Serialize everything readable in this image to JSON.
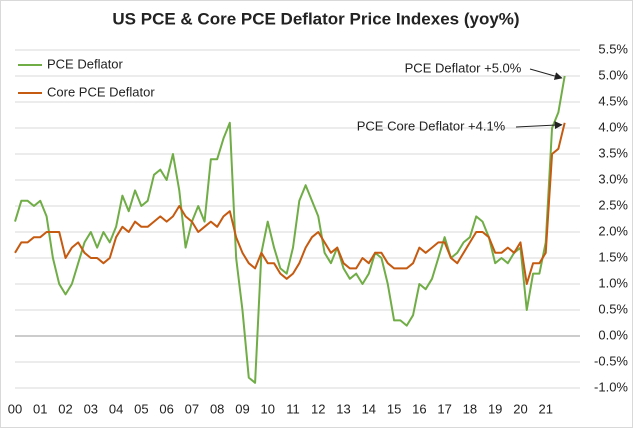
{
  "chart_data": {
    "type": "line",
    "title": "US PCE & Core PCE Deflator Price Indexes (yoy%)",
    "x": [
      0,
      0.25,
      0.5,
      0.75,
      1,
      1.25,
      1.5,
      1.75,
      2,
      2.25,
      2.5,
      2.75,
      3,
      3.25,
      3.5,
      3.75,
      4,
      4.25,
      4.5,
      4.75,
      5,
      5.25,
      5.5,
      5.75,
      6,
      6.25,
      6.5,
      6.75,
      7,
      7.25,
      7.5,
      7.75,
      8,
      8.25,
      8.5,
      8.75,
      9,
      9.25,
      9.5,
      9.75,
      10,
      10.25,
      10.5,
      10.75,
      11,
      11.25,
      11.5,
      11.75,
      12,
      12.25,
      12.5,
      12.75,
      13,
      13.25,
      13.5,
      13.75,
      14,
      14.25,
      14.5,
      14.75,
      15,
      15.25,
      15.5,
      15.75,
      16,
      16.25,
      16.5,
      16.75,
      17,
      17.25,
      17.5,
      17.75,
      18,
      18.25,
      18.5,
      18.75,
      19,
      19.25,
      19.5,
      19.75,
      20,
      20.25,
      20.5,
      20.75,
      21,
      21.25,
      21.5,
      21.75
    ],
    "series": [
      {
        "name": "PCE Deflator",
        "color": "#70ad47",
        "values": [
          2.2,
          2.6,
          2.6,
          2.5,
          2.6,
          2.3,
          1.5,
          1.0,
          0.8,
          1.0,
          1.4,
          1.8,
          2.0,
          1.7,
          2.0,
          1.8,
          2.1,
          2.7,
          2.4,
          2.8,
          2.5,
          2.6,
          3.1,
          3.2,
          3.0,
          3.5,
          2.8,
          1.7,
          2.2,
          2.5,
          2.2,
          3.4,
          3.4,
          3.8,
          4.1,
          1.5,
          0.5,
          -0.8,
          -0.9,
          1.6,
          2.2,
          1.7,
          1.3,
          1.2,
          1.7,
          2.6,
          2.9,
          2.6,
          2.3,
          1.6,
          1.4,
          1.7,
          1.3,
          1.1,
          1.2,
          1.0,
          1.2,
          1.6,
          1.5,
          1.0,
          0.3,
          0.3,
          0.2,
          0.4,
          1.0,
          0.9,
          1.1,
          1.5,
          1.9,
          1.5,
          1.6,
          1.8,
          1.9,
          2.3,
          2.2,
          1.9,
          1.4,
          1.5,
          1.4,
          1.6,
          1.7,
          0.5,
          1.2,
          1.2,
          1.8,
          4.0,
          4.3,
          5.0
        ]
      },
      {
        "name": "Core PCE Deflator",
        "color": "#c55a11",
        "values": [
          1.6,
          1.8,
          1.8,
          1.9,
          1.9,
          2.0,
          2.0,
          2.0,
          1.5,
          1.7,
          1.8,
          1.6,
          1.5,
          1.5,
          1.4,
          1.5,
          1.9,
          2.1,
          2.0,
          2.2,
          2.1,
          2.1,
          2.2,
          2.3,
          2.2,
          2.3,
          2.5,
          2.3,
          2.2,
          2.0,
          2.1,
          2.2,
          2.1,
          2.3,
          2.4,
          1.9,
          1.6,
          1.4,
          1.3,
          1.6,
          1.4,
          1.4,
          1.2,
          1.1,
          1.2,
          1.4,
          1.7,
          1.9,
          2.0,
          1.8,
          1.6,
          1.7,
          1.4,
          1.3,
          1.3,
          1.5,
          1.4,
          1.6,
          1.6,
          1.4,
          1.3,
          1.3,
          1.3,
          1.4,
          1.7,
          1.6,
          1.7,
          1.8,
          1.8,
          1.5,
          1.4,
          1.6,
          1.8,
          2.0,
          2.0,
          1.9,
          1.6,
          1.6,
          1.7,
          1.6,
          1.8,
          1.0,
          1.4,
          1.4,
          1.6,
          3.5,
          3.6,
          4.1
        ]
      }
    ],
    "xlim": [
      0,
      22
    ],
    "xticks": [
      {
        "value": 0,
        "label": "00"
      },
      {
        "value": 1,
        "label": "01"
      },
      {
        "value": 2,
        "label": "02"
      },
      {
        "value": 3,
        "label": "03"
      },
      {
        "value": 4,
        "label": "04"
      },
      {
        "value": 5,
        "label": "05"
      },
      {
        "value": 6,
        "label": "06"
      },
      {
        "value": 7,
        "label": "07"
      },
      {
        "value": 8,
        "label": "08"
      },
      {
        "value": 9,
        "label": "09"
      },
      {
        "value": 10,
        "label": "10"
      },
      {
        "value": 11,
        "label": "11"
      },
      {
        "value": 12,
        "label": "12"
      },
      {
        "value": 13,
        "label": "13"
      },
      {
        "value": 14,
        "label": "14"
      },
      {
        "value": 15,
        "label": "15"
      },
      {
        "value": 16,
        "label": "16"
      },
      {
        "value": 17,
        "label": "17"
      },
      {
        "value": 18,
        "label": "18"
      },
      {
        "value": 19,
        "label": "19"
      },
      {
        "value": 20,
        "label": "20"
      },
      {
        "value": 21,
        "label": "21"
      }
    ],
    "ylim": [
      -1.0,
      5.5
    ],
    "yticks": [
      {
        "value": -1.0,
        "label": "-1.0%"
      },
      {
        "value": -0.5,
        "label": "-0.5%"
      },
      {
        "value": 0,
        "label": "0.0%"
      },
      {
        "value": 0.5,
        "label": "0.5%"
      },
      {
        "value": 1.0,
        "label": "1.0%"
      },
      {
        "value": 1.5,
        "label": "1.5%"
      },
      {
        "value": 2.0,
        "label": "2.0%"
      },
      {
        "value": 2.5,
        "label": "2.5%"
      },
      {
        "value": 3.0,
        "label": "3.0%"
      },
      {
        "value": 3.5,
        "label": "3.5%"
      },
      {
        "value": 4.0,
        "label": "4.0%"
      },
      {
        "value": 4.5,
        "label": "4.5%"
      },
      {
        "value": 5.0,
        "label": "5.0%"
      },
      {
        "value": 5.5,
        "label": "5.5%"
      }
    ],
    "grid": true,
    "legend": "top-left",
    "annotations": [
      {
        "text": "PCE Deflator +5.0%"
      },
      {
        "text": "PCE Core Deflator +4.1%"
      }
    ]
  }
}
